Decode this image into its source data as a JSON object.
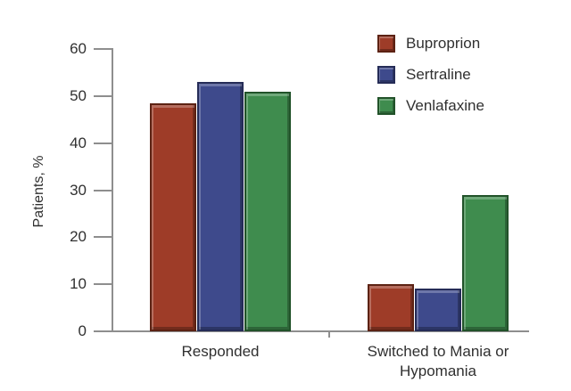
{
  "chart_data": {
    "type": "bar",
    "title": "",
    "xlabel": "",
    "ylabel": "Patients, %",
    "ylim": [
      0,
      60
    ],
    "yticks": [
      0,
      10,
      20,
      30,
      40,
      50,
      60
    ],
    "grid": false,
    "legend_position": "top-right",
    "categories": [
      "Responded",
      "Switched to Mania or Hypomania"
    ],
    "series": [
      {
        "name": "Buproprion",
        "color": "#9e3c28",
        "border_color": "#5c2213",
        "values": [
          48.5,
          10
        ]
      },
      {
        "name": "Sertraline",
        "color": "#3e4a8c",
        "border_color": "#252c57",
        "values": [
          53,
          9
        ]
      },
      {
        "name": "Venlafaxine",
        "color": "#3f8c4e",
        "border_color": "#215229",
        "values": [
          51,
          29
        ]
      }
    ]
  },
  "colors": {
    "axis": "#8e8e8e",
    "text": "#303030",
    "background": "#ffffff"
  }
}
